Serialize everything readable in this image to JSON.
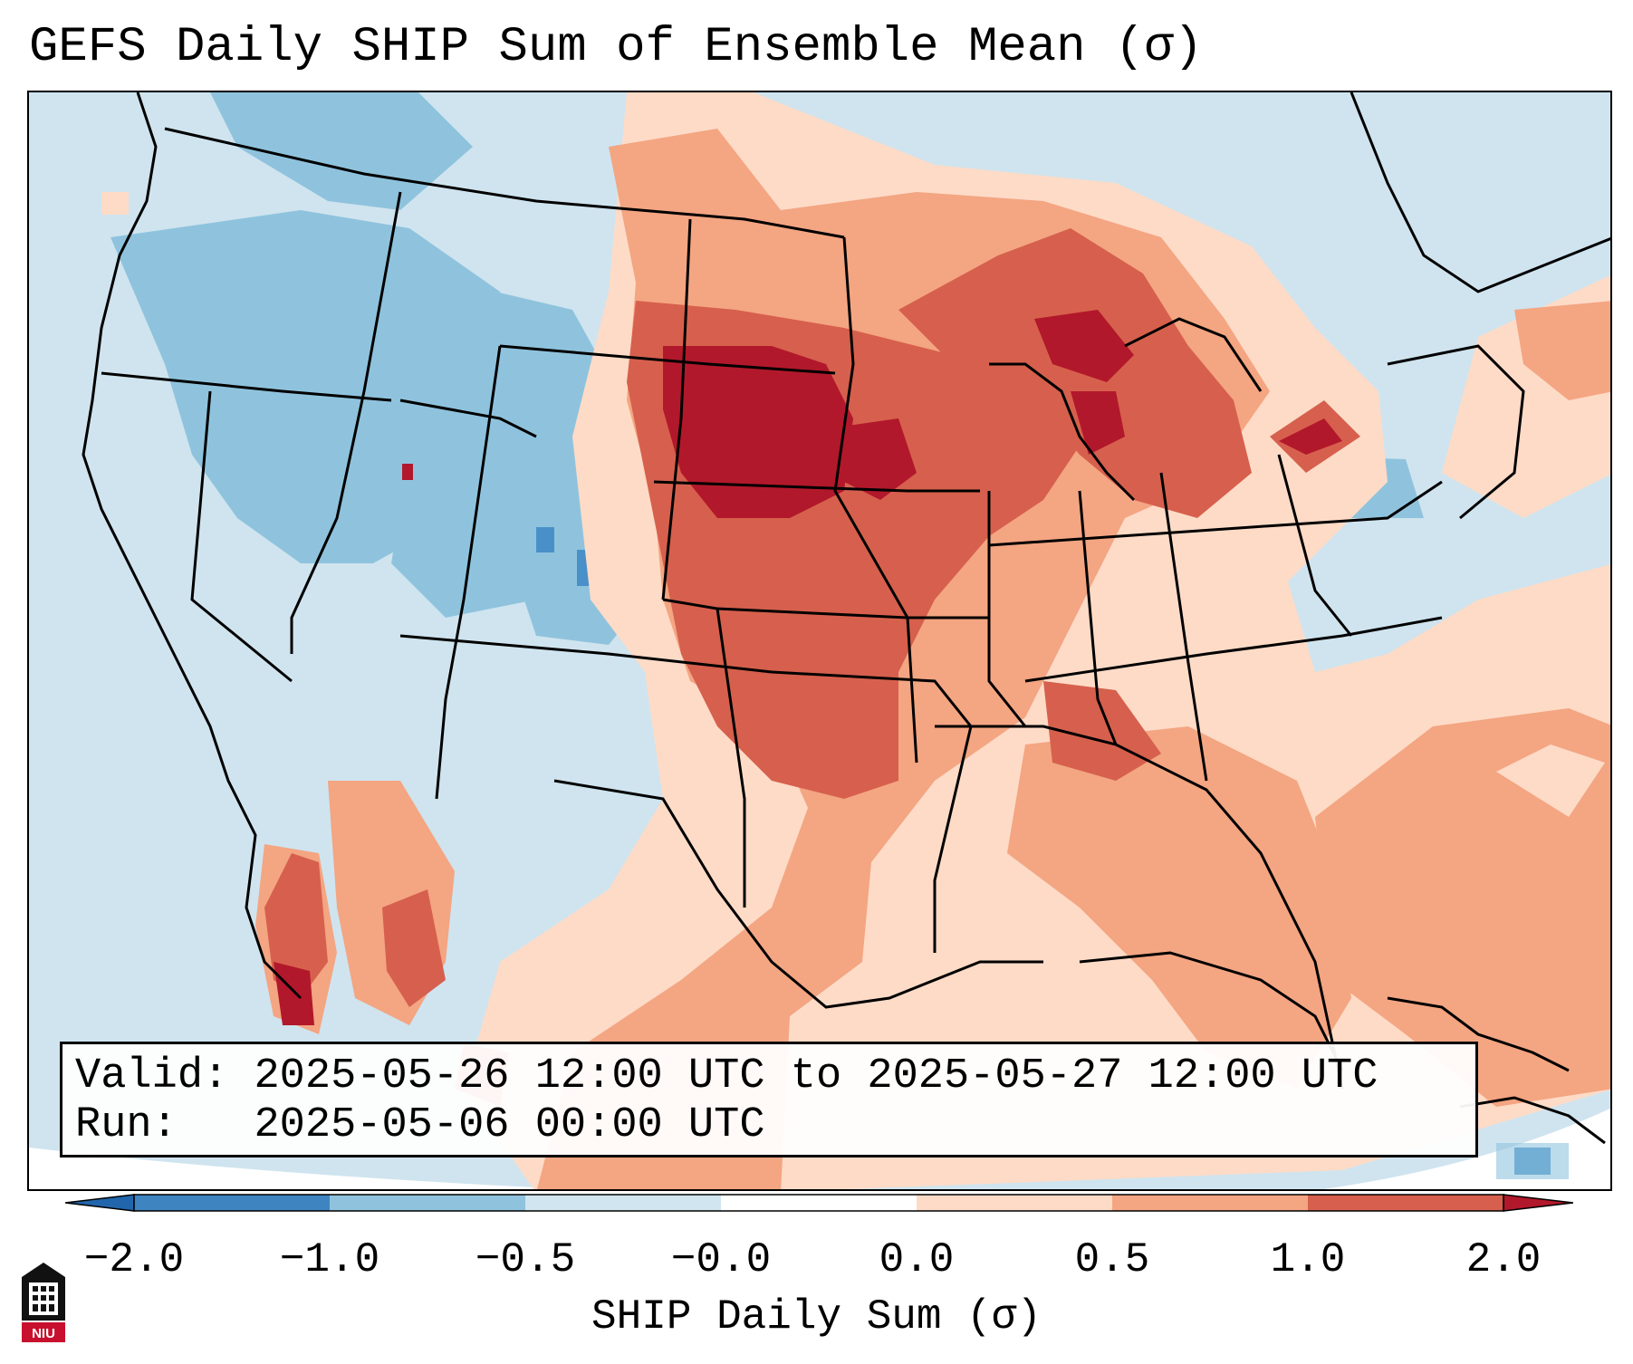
{
  "title": "GEFS Daily SHIP Sum of Ensemble Mean (σ)",
  "info": {
    "valid_label": "Valid:",
    "valid_value": "2025-05-26 12:00 UTC to 2025-05-27 12:00 UTC",
    "run_label": "Run:",
    "run_value": "2025-05-06 00:00 UTC"
  },
  "colorbar": {
    "label": "SHIP Daily Sum (σ)",
    "ticks": [
      "−2.0",
      "−1.0",
      "−0.5",
      "−0.0",
      "0.0",
      "0.5",
      "1.0",
      "2.0"
    ],
    "colors": [
      "#3e84c0",
      "#8fc3dd",
      "#d1e5f0",
      "#ffffff",
      "#fddbc7",
      "#f4a582",
      "#d6604d",
      "#b2182b"
    ],
    "extend": "both"
  },
  "map": {
    "domain": "CONUS and adjacent waters",
    "background_color": "#cfe4ef",
    "anomaly_regions": [
      {
        "name": "northern-plains-max",
        "level": 2.0
      },
      {
        "name": "upper-midwest",
        "level": 1.0
      },
      {
        "name": "great-lakes",
        "level": 1.0
      },
      {
        "name": "southern-plains",
        "level": 1.0
      },
      {
        "name": "southeast-and-gulf",
        "level": 0.5
      },
      {
        "name": "western-atlantic",
        "level": 0.5
      },
      {
        "name": "baja-mexico-coast",
        "level": 1.0
      },
      {
        "name": "rockies",
        "level": -0.5
      },
      {
        "name": "colorado-min",
        "level": -1.0
      }
    ]
  },
  "logo": {
    "text": "NIU"
  }
}
